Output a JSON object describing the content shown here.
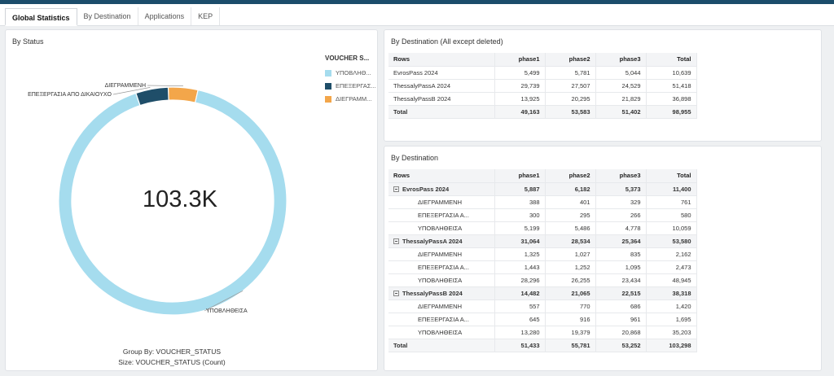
{
  "tabs": [
    "Global Statistics",
    "By Destination",
    "Applications",
    "KEP"
  ],
  "status_panel": {
    "title": "By Status",
    "center_value": "103.3K",
    "legend_title": "VOUCHER S...",
    "legend": [
      {
        "label": "ΥΠΟΒΛΗΘ...",
        "color": "#a5dcee"
      },
      {
        "label": "ΕΠΕΞΕΡΓΑΣ...",
        "color": "#1f4e69"
      },
      {
        "label": "ΔΙΕΓΡΑΜΜ...",
        "color": "#f3a64a"
      }
    ],
    "slice_labels": [
      "ΔΙΕΓΡΑΜΜΕΝΗ",
      "ΕΠΕΞΕΡΓΑΣΙΑ ΑΠΟ ΔΙΚΑΙΟΥΧΟ",
      "ΥΠΟΒΛΗΘΕΙΣΑ"
    ],
    "caption_group": "Group By: VOUCHER_STATUS",
    "caption_size": "Size: VOUCHER_STATUS (Count)"
  },
  "chart_data": {
    "type": "pie",
    "categories": [
      "ΥΠΟΒΛΗΘΕΙΣΑ",
      "ΕΠΕΞΕΡΓΑΣΙΑ ΑΠΟ ΔΙΚΑΙΟΥΧΟ",
      "ΔΙΕΓΡΑΜΜΕΝΗ"
    ],
    "values": [
      94207,
      4748,
      4343
    ],
    "colors": [
      "#a5dcee",
      "#1f4e69",
      "#f3a64a"
    ],
    "title": "By Status",
    "total_label": "103.3K"
  },
  "table1": {
    "title": "By Destination (All except deleted)",
    "headers": [
      "Rows",
      "phase1",
      "phase2",
      "phase3",
      "Total"
    ],
    "rows": [
      [
        "EvrosPass 2024",
        "5,499",
        "5,781",
        "5,044",
        "10,639"
      ],
      [
        "ThessalyPassA 2024",
        "29,739",
        "27,507",
        "24,529",
        "51,418"
      ],
      [
        "ThessalyPassB 2024",
        "13,925",
        "20,295",
        "21,829",
        "36,898"
      ]
    ],
    "total": [
      "Total",
      "49,163",
      "53,583",
      "51,402",
      "98,955"
    ]
  },
  "table2": {
    "title": "By Destination",
    "headers": [
      "Rows",
      "phase1",
      "phase2",
      "phase3",
      "Total"
    ],
    "groups": [
      {
        "row": [
          "EvrosPass 2024",
          "5,887",
          "6,182",
          "5,373",
          "11,400"
        ],
        "children": [
          [
            "ΔΙΕΓΡΑΜΜΕΝΗ",
            "388",
            "401",
            "329",
            "761"
          ],
          [
            "ΕΠΕΞΕΡΓΑΣΙΑ Α...",
            "300",
            "295",
            "266",
            "580"
          ],
          [
            "ΥΠΟΒΛΗΘΕΙΣΑ",
            "5,199",
            "5,486",
            "4,778",
            "10,059"
          ]
        ]
      },
      {
        "row": [
          "ThessalyPassA 2024",
          "31,064",
          "28,534",
          "25,364",
          "53,580"
        ],
        "children": [
          [
            "ΔΙΕΓΡΑΜΜΕΝΗ",
            "1,325",
            "1,027",
            "835",
            "2,162"
          ],
          [
            "ΕΠΕΞΕΡΓΑΣΙΑ Α...",
            "1,443",
            "1,252",
            "1,095",
            "2,473"
          ],
          [
            "ΥΠΟΒΛΗΘΕΙΣΑ",
            "28,296",
            "26,255",
            "23,434",
            "48,945"
          ]
        ]
      },
      {
        "row": [
          "ThessalyPassB 2024",
          "14,482",
          "21,065",
          "22,515",
          "38,318"
        ],
        "children": [
          [
            "ΔΙΕΓΡΑΜΜΕΝΗ",
            "557",
            "770",
            "686",
            "1,420"
          ],
          [
            "ΕΠΕΞΕΡΓΑΣΙΑ Α...",
            "645",
            "916",
            "961",
            "1,695"
          ],
          [
            "ΥΠΟΒΛΗΘΕΙΣΑ",
            "13,280",
            "19,379",
            "20,868",
            "35,203"
          ]
        ]
      }
    ],
    "total": [
      "Total",
      "51,433",
      "55,781",
      "53,252",
      "103,298"
    ]
  }
}
